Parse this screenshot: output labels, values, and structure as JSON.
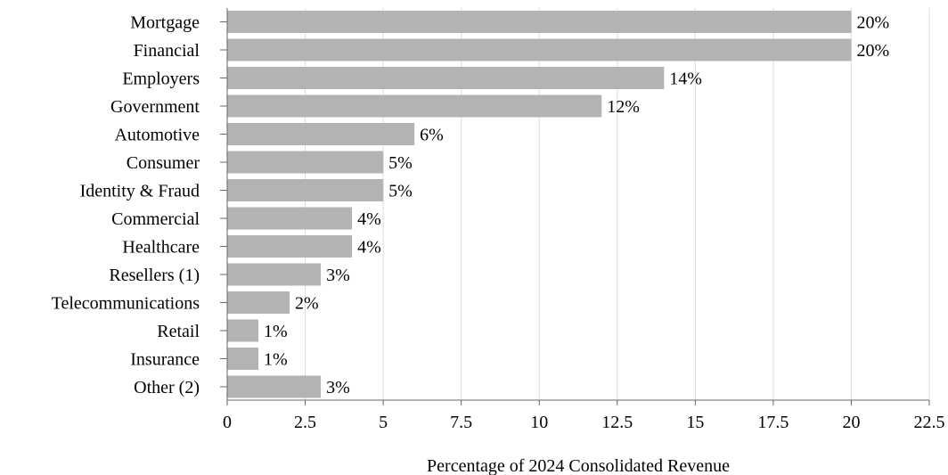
{
  "colors": {
    "bar": "#b3b3b3",
    "grid": "#dcdcdc",
    "axis": "#666666",
    "text": "#000000"
  },
  "chart_data": {
    "type": "bar",
    "orientation": "horizontal",
    "categories": [
      "Mortgage",
      "Financial",
      "Employers",
      "Government",
      "Automotive",
      "Consumer",
      "Identity & Fraud",
      "Commercial",
      "Healthcare",
      "Resellers (1)",
      "Telecommunications",
      "Retail",
      "Insurance",
      "Other (2)"
    ],
    "values": [
      20,
      20,
      14,
      12,
      6,
      5,
      5,
      4,
      4,
      3,
      2,
      1,
      1,
      3
    ],
    "data_labels": [
      "20%",
      "20%",
      "14%",
      "12%",
      "6%",
      "5%",
      "5%",
      "4%",
      "4%",
      "3%",
      "2%",
      "1%",
      "1%",
      "3%"
    ],
    "title": "",
    "xlabel": "Percentage of 2024 Consolidated Revenue",
    "ylabel": "",
    "xlim": [
      0,
      22.5
    ],
    "xticks": [
      0,
      2.5,
      5,
      7.5,
      10,
      12.5,
      15,
      17.5,
      20,
      22.5
    ],
    "xtick_labels": [
      "0",
      "2.5",
      "5",
      "7.5",
      "10",
      "12.5",
      "15",
      "17.5",
      "20",
      "22.5"
    ],
    "grid": "vertical",
    "legend": "none"
  }
}
